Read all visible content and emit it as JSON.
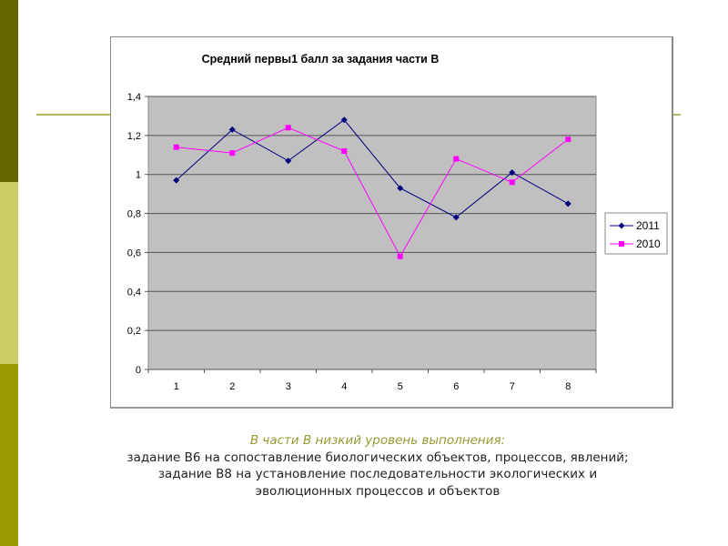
{
  "sidebar_colors": [
    "#666600",
    "#cccc66",
    "#999900"
  ],
  "chart_data": {
    "type": "line",
    "title": "Средний первы1 балл за задания части В",
    "categories": [
      "1",
      "2",
      "3",
      "4",
      "5",
      "6",
      "7",
      "8"
    ],
    "ylim": [
      0,
      1.4
    ],
    "yticks": [
      "0",
      "0,2",
      "0,4",
      "0,6",
      "0,8",
      "1",
      "1,2",
      "1,4"
    ],
    "grid": true,
    "legend": "right",
    "plot_background": "#c0c0c0",
    "series": [
      {
        "name": "2011",
        "color": "#000080",
        "marker": "diamond",
        "values": [
          0.97,
          1.23,
          1.07,
          1.28,
          0.93,
          0.78,
          1.01,
          0.85
        ]
      },
      {
        "name": "2010",
        "color": "#ff00ff",
        "marker": "square",
        "values": [
          1.14,
          1.11,
          1.24,
          1.12,
          0.58,
          1.08,
          0.96,
          1.18
        ]
      }
    ]
  },
  "caption": {
    "heading": "В части В низкий уровень выполнения:",
    "line1": "задание В6 на сопоставление биологических объектов, процессов, явлений;",
    "line2": "задание В8 на установление последовательности экологических и эволюционных процессов и объектов"
  }
}
